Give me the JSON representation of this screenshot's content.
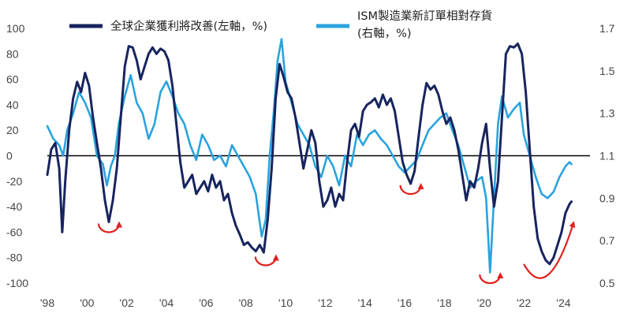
{
  "chart_data": {
    "type": "line",
    "title": "",
    "xlabel": "",
    "x_tick_labels": [
      "'98",
      "'00",
      "'02",
      "'04",
      "'06",
      "'08",
      "'10",
      "'12",
      "'14",
      "'16",
      "'18",
      "'20",
      "'22",
      "'24"
    ],
    "x_tick_years": [
      1998,
      2000,
      2002,
      2004,
      2006,
      2008,
      2010,
      2012,
      2014,
      2016,
      2018,
      2020,
      2022,
      2024
    ],
    "xlim": [
      1998,
      2024.5
    ],
    "left_axis": {
      "label": "全球企業獲利將改善(左軸，%)",
      "ylim": [
        -100,
        100
      ],
      "ticks": [
        100,
        80,
        60,
        40,
        20,
        0,
        -20,
        -40,
        -60,
        -80,
        -100
      ],
      "tick_labels": [
        "100",
        "80",
        "60",
        "40",
        "20",
        "0",
        "-20",
        "-40",
        "-60",
        "-80",
        "-100"
      ]
    },
    "right_axis": {
      "label": "ISM製造業新訂單相對存貨(右軸，%)",
      "ylim": [
        0.5,
        1.7
      ],
      "ticks": [
        1.7,
        1.5,
        1.3,
        1.1,
        0.9,
        0.7,
        0.5
      ],
      "tick_labels": [
        "1.7",
        "1.5",
        "1.3",
        "1.1",
        "0.9",
        "0.7",
        "0.5"
      ]
    },
    "series": [
      {
        "name": "全球企業獲利將改善(左軸，%)",
        "axis": "left",
        "color": "#17245e",
        "points": [
          [
            1998.0,
            -15
          ],
          [
            1998.2,
            5
          ],
          [
            1998.4,
            10
          ],
          [
            1998.6,
            -10
          ],
          [
            1998.75,
            -60
          ],
          [
            1998.9,
            -20
          ],
          [
            1999.1,
            20
          ],
          [
            1999.3,
            45
          ],
          [
            1999.5,
            58
          ],
          [
            1999.7,
            50
          ],
          [
            1999.9,
            65
          ],
          [
            2000.1,
            55
          ],
          [
            2000.3,
            30
          ],
          [
            2000.5,
            10
          ],
          [
            2000.7,
            -10
          ],
          [
            2000.9,
            -35
          ],
          [
            2001.1,
            -52
          ],
          [
            2001.3,
            -35
          ],
          [
            2001.5,
            -10
          ],
          [
            2001.7,
            30
          ],
          [
            2001.9,
            70
          ],
          [
            2002.1,
            86
          ],
          [
            2002.3,
            85
          ],
          [
            2002.5,
            75
          ],
          [
            2002.7,
            60
          ],
          [
            2002.9,
            70
          ],
          [
            2003.1,
            80
          ],
          [
            2003.3,
            85
          ],
          [
            2003.5,
            80
          ],
          [
            2003.7,
            84
          ],
          [
            2003.9,
            82
          ],
          [
            2004.1,
            75
          ],
          [
            2004.3,
            55
          ],
          [
            2004.5,
            25
          ],
          [
            2004.7,
            -5
          ],
          [
            2004.9,
            -25
          ],
          [
            2005.1,
            -20
          ],
          [
            2005.3,
            -15
          ],
          [
            2005.5,
            -30
          ],
          [
            2005.7,
            -25
          ],
          [
            2005.9,
            -20
          ],
          [
            2006.1,
            -28
          ],
          [
            2006.3,
            -15
          ],
          [
            2006.5,
            -25
          ],
          [
            2006.7,
            -20
          ],
          [
            2006.9,
            -35
          ],
          [
            2007.1,
            -30
          ],
          [
            2007.3,
            -45
          ],
          [
            2007.5,
            -55
          ],
          [
            2007.7,
            -62
          ],
          [
            2007.9,
            -70
          ],
          [
            2008.1,
            -68
          ],
          [
            2008.3,
            -72
          ],
          [
            2008.5,
            -75
          ],
          [
            2008.7,
            -70
          ],
          [
            2008.9,
            -76
          ],
          [
            2009.1,
            -50
          ],
          [
            2009.3,
            -10
          ],
          [
            2009.5,
            45
          ],
          [
            2009.7,
            72
          ],
          [
            2009.9,
            62
          ],
          [
            2010.1,
            50
          ],
          [
            2010.3,
            45
          ],
          [
            2010.5,
            30
          ],
          [
            2010.7,
            10
          ],
          [
            2010.9,
            -10
          ],
          [
            2011.1,
            5
          ],
          [
            2011.3,
            20
          ],
          [
            2011.5,
            10
          ],
          [
            2011.7,
            -20
          ],
          [
            2011.9,
            -40
          ],
          [
            2012.1,
            -35
          ],
          [
            2012.3,
            -25
          ],
          [
            2012.5,
            -40
          ],
          [
            2012.7,
            -30
          ],
          [
            2012.9,
            -35
          ],
          [
            2013.1,
            -5
          ],
          [
            2013.3,
            20
          ],
          [
            2013.5,
            25
          ],
          [
            2013.7,
            15
          ],
          [
            2013.9,
            35
          ],
          [
            2014.1,
            40
          ],
          [
            2014.3,
            42
          ],
          [
            2014.5,
            45
          ],
          [
            2014.7,
            38
          ],
          [
            2014.9,
            48
          ],
          [
            2015.1,
            40
          ],
          [
            2015.3,
            45
          ],
          [
            2015.5,
            35
          ],
          [
            2015.7,
            15
          ],
          [
            2015.9,
            -5
          ],
          [
            2016.1,
            -15
          ],
          [
            2016.3,
            -22
          ],
          [
            2016.5,
            -12
          ],
          [
            2016.7,
            15
          ],
          [
            2016.9,
            40
          ],
          [
            2017.1,
            57
          ],
          [
            2017.3,
            52
          ],
          [
            2017.5,
            55
          ],
          [
            2017.7,
            48
          ],
          [
            2017.9,
            35
          ],
          [
            2018.1,
            25
          ],
          [
            2018.3,
            30
          ],
          [
            2018.5,
            20
          ],
          [
            2018.7,
            5
          ],
          [
            2018.9,
            -15
          ],
          [
            2019.1,
            -35
          ],
          [
            2019.3,
            -20
          ],
          [
            2019.5,
            -25
          ],
          [
            2019.7,
            -10
          ],
          [
            2019.9,
            10
          ],
          [
            2020.1,
            25
          ],
          [
            2020.3,
            -10
          ],
          [
            2020.5,
            -40
          ],
          [
            2020.7,
            -20
          ],
          [
            2020.9,
            30
          ],
          [
            2021.1,
            80
          ],
          [
            2021.3,
            86
          ],
          [
            2021.5,
            85
          ],
          [
            2021.7,
            88
          ],
          [
            2021.9,
            80
          ],
          [
            2022.1,
            50
          ],
          [
            2022.3,
            5
          ],
          [
            2022.5,
            -40
          ],
          [
            2022.7,
            -65
          ],
          [
            2022.9,
            -75
          ],
          [
            2023.1,
            -82
          ],
          [
            2023.3,
            -85
          ],
          [
            2023.5,
            -80
          ],
          [
            2023.7,
            -70
          ],
          [
            2023.9,
            -60
          ],
          [
            2024.1,
            -45
          ],
          [
            2024.3,
            -38
          ],
          [
            2024.4,
            -36
          ]
        ]
      },
      {
        "name": "ISM製造業新訂單相對存貨(右軸，%)",
        "axis": "right",
        "color": "#29a3dd",
        "points": [
          [
            1998.0,
            1.24
          ],
          [
            1998.3,
            1.18
          ],
          [
            1998.6,
            1.15
          ],
          [
            1998.8,
            1.1
          ],
          [
            1999.0,
            1.22
          ],
          [
            1999.3,
            1.3
          ],
          [
            1999.6,
            1.4
          ],
          [
            1999.9,
            1.35
          ],
          [
            2000.2,
            1.28
          ],
          [
            2000.5,
            1.1
          ],
          [
            2000.8,
            1.06
          ],
          [
            2001.0,
            0.96
          ],
          [
            2001.2,
            1.05
          ],
          [
            2001.4,
            1.1
          ],
          [
            2001.6,
            1.25
          ],
          [
            2001.9,
            1.38
          ],
          [
            2002.2,
            1.48
          ],
          [
            2002.5,
            1.35
          ],
          [
            2002.8,
            1.3
          ],
          [
            2003.1,
            1.18
          ],
          [
            2003.4,
            1.25
          ],
          [
            2003.7,
            1.4
          ],
          [
            2004.0,
            1.45
          ],
          [
            2004.3,
            1.38
          ],
          [
            2004.6,
            1.3
          ],
          [
            2004.9,
            1.25
          ],
          [
            2005.2,
            1.15
          ],
          [
            2005.5,
            1.08
          ],
          [
            2005.8,
            1.2
          ],
          [
            2006.1,
            1.15
          ],
          [
            2006.4,
            1.08
          ],
          [
            2006.7,
            1.1
          ],
          [
            2007.0,
            1.05
          ],
          [
            2007.3,
            1.15
          ],
          [
            2007.6,
            1.1
          ],
          [
            2007.9,
            1.05
          ],
          [
            2008.2,
            1.0
          ],
          [
            2008.5,
            0.92
          ],
          [
            2008.8,
            0.72
          ],
          [
            2009.0,
            0.8
          ],
          [
            2009.2,
            1.1
          ],
          [
            2009.4,
            1.3
          ],
          [
            2009.6,
            1.55
          ],
          [
            2009.8,
            1.65
          ],
          [
            2010.0,
            1.45
          ],
          [
            2010.3,
            1.35
          ],
          [
            2010.6,
            1.25
          ],
          [
            2010.9,
            1.2
          ],
          [
            2011.2,
            1.15
          ],
          [
            2011.5,
            1.05
          ],
          [
            2011.8,
            1.0
          ],
          [
            2012.1,
            1.1
          ],
          [
            2012.4,
            1.05
          ],
          [
            2012.7,
            0.96
          ],
          [
            2013.0,
            1.1
          ],
          [
            2013.3,
            1.05
          ],
          [
            2013.6,
            1.2
          ],
          [
            2013.9,
            1.15
          ],
          [
            2014.2,
            1.2
          ],
          [
            2014.5,
            1.22
          ],
          [
            2014.8,
            1.18
          ],
          [
            2015.1,
            1.15
          ],
          [
            2015.4,
            1.1
          ],
          [
            2015.7,
            1.05
          ],
          [
            2016.0,
            1.02
          ],
          [
            2016.3,
            1.05
          ],
          [
            2016.6,
            1.08
          ],
          [
            2016.9,
            1.15
          ],
          [
            2017.2,
            1.22
          ],
          [
            2017.5,
            1.25
          ],
          [
            2017.8,
            1.28
          ],
          [
            2018.1,
            1.3
          ],
          [
            2018.4,
            1.22
          ],
          [
            2018.7,
            1.15
          ],
          [
            2019.0,
            1.05
          ],
          [
            2019.3,
            0.95
          ],
          [
            2019.6,
            0.98
          ],
          [
            2019.9,
            1.0
          ],
          [
            2020.1,
            0.9
          ],
          [
            2020.3,
            0.55
          ],
          [
            2020.5,
            0.9
          ],
          [
            2020.7,
            1.25
          ],
          [
            2020.9,
            1.38
          ],
          [
            2021.2,
            1.28
          ],
          [
            2021.5,
            1.32
          ],
          [
            2021.8,
            1.35
          ],
          [
            2022.0,
            1.2
          ],
          [
            2022.3,
            1.1
          ],
          [
            2022.6,
            1.0
          ],
          [
            2022.9,
            0.92
          ],
          [
            2023.2,
            0.9
          ],
          [
            2023.5,
            0.93
          ],
          [
            2023.8,
            1.0
          ],
          [
            2024.1,
            1.05
          ],
          [
            2024.3,
            1.07
          ],
          [
            2024.4,
            1.06
          ]
        ]
      }
    ],
    "annotations": [
      {
        "type": "trough-arrow",
        "x": 2001.1,
        "y_left": -52
      },
      {
        "type": "trough-arrow",
        "x": 2009.0,
        "y_left": -78
      },
      {
        "type": "trough-arrow",
        "x": 2016.3,
        "y_left": -22
      },
      {
        "type": "trough-arrow",
        "x": 2020.3,
        "y_left": -92
      },
      {
        "type": "recovery-arrow",
        "from_x": 2022.0,
        "to_x": 2024.5
      }
    ]
  }
}
